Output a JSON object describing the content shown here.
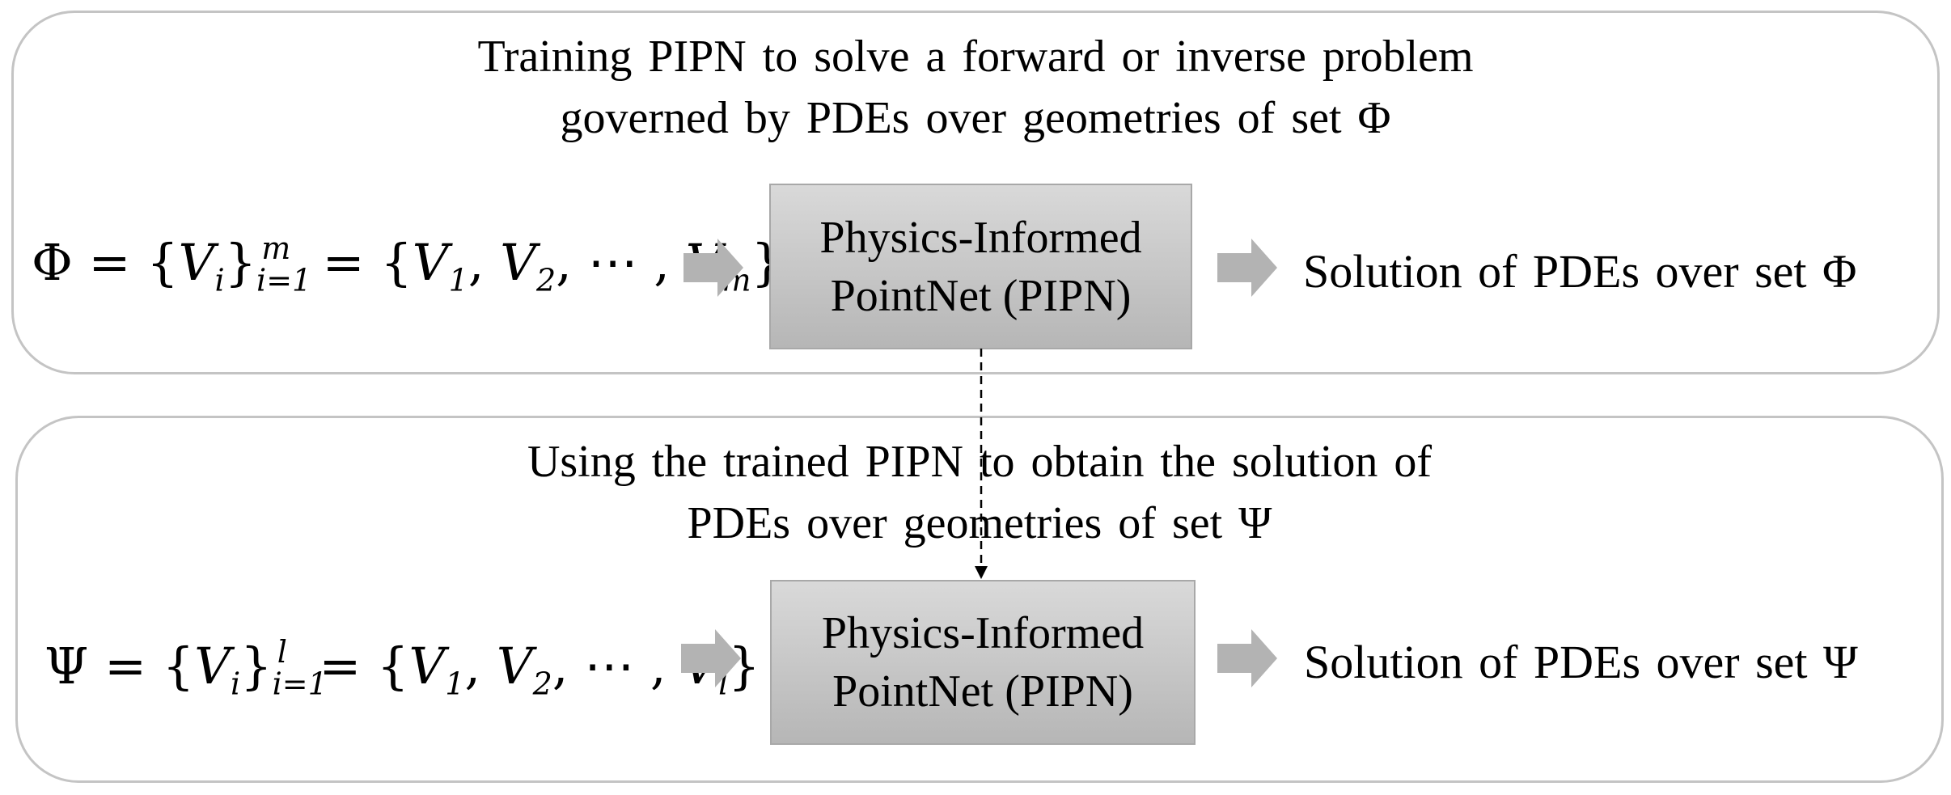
{
  "training": {
    "heading_line1": "Training PIPN to solve a forward or inverse problem",
    "heading_line2": "governed by PDEs over geometries of set Φ",
    "set_symbol": "Φ",
    "set_var": "V",
    "set_index": "i",
    "set_lower": "i=1",
    "set_upper": "m",
    "set_last": "m",
    "model_line1": "Physics-Informed",
    "model_line2": "PointNet (PIPN)",
    "solution": "Solution of PDEs over set Φ"
  },
  "inference": {
    "heading_line1": "Using the trained PIPN to obtain the solution of",
    "heading_line2": "PDEs over geometries of set Ψ",
    "set_symbol": "Ψ",
    "set_var": "V",
    "set_index": "i",
    "set_lower": "i=1",
    "set_upper": "l",
    "set_last": "l",
    "model_line1": "Physics-Informed",
    "model_line2": "PointNet (PIPN)",
    "solution": "Solution of PDEs over set Ψ"
  },
  "colors": {
    "panel_border": "#c4c4c4",
    "box_fill": "#c8c8c8",
    "arrow_fill": "#b3b3b3",
    "link_line": "#000000"
  }
}
